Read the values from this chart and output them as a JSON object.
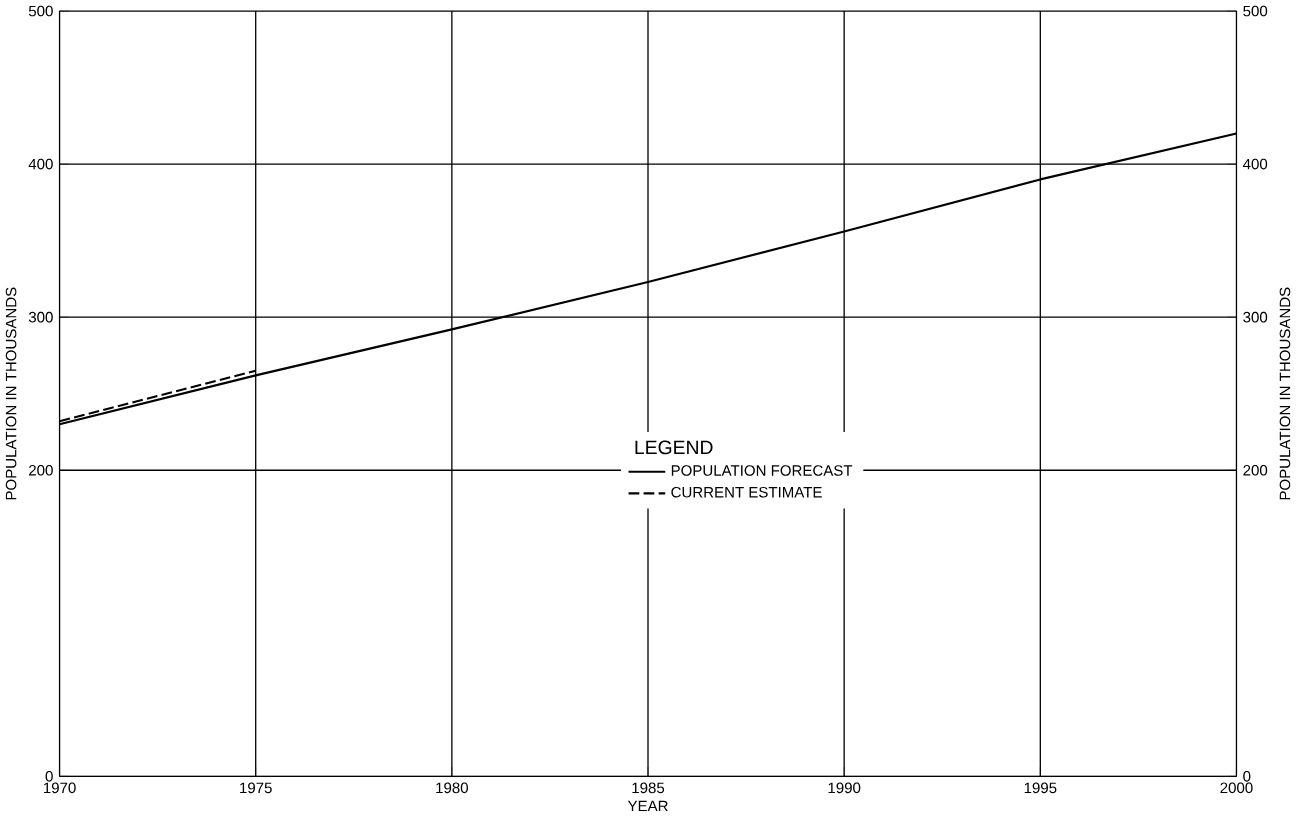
{
  "chart_data": {
    "type": "line",
    "xlabel": "YEAR",
    "ylabel": "POPULATION IN THOUSANDS",
    "y2label": "POPULATION IN THOUSANDS",
    "legend_title": "LEGEND",
    "x": [
      1970,
      1975,
      1980,
      1985,
      1990,
      1995,
      2000
    ],
    "series": [
      {
        "name": "POPULATION FORECAST",
        "color": "#000000",
        "line_style": "solid",
        "values": [
          230,
          262,
          292,
          323,
          356,
          390,
          420
        ]
      },
      {
        "name": "CURRENT ESTIMATE",
        "color": "#000000",
        "line_style": "dashed",
        "x": [
          1970,
          1975
        ],
        "values": [
          232,
          265
        ]
      }
    ],
    "xlim": [
      1970,
      2000
    ],
    "xticks": [
      1970,
      1975,
      1980,
      1985,
      1990,
      1995,
      2000
    ],
    "ylim": [
      0,
      500
    ],
    "yticks": [
      0,
      200,
      300,
      400,
      500
    ],
    "y2lim": [
      0,
      500
    ],
    "y2ticks": [
      0,
      200,
      300,
      400,
      500
    ],
    "grid": true,
    "legend": "center",
    "marker": "none"
  }
}
